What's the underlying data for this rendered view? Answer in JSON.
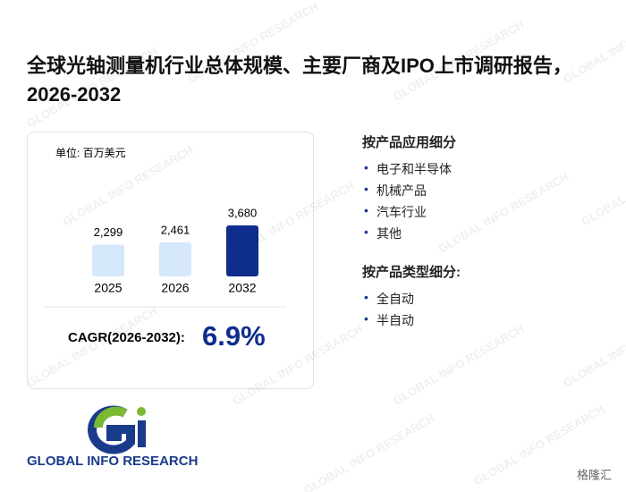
{
  "title": "全球光轴测量机行业总体规模、主要厂商及IPO上市调研报告，2026-2032",
  "chart_data": {
    "type": "bar",
    "unit_label": "单位: 百万美元",
    "categories": [
      "2025",
      "2026",
      "2032"
    ],
    "values": [
      2299,
      2461,
      3680
    ],
    "value_labels": [
      "2,299",
      "2,461",
      "3,680"
    ],
    "colors": [
      "#d6e8fb",
      "#d6e8fb",
      "#0e2d8c"
    ]
  },
  "cagr": {
    "label": "CAGR(2026-2032):",
    "value": "6.9%"
  },
  "segments": [
    {
      "heading": "按产品应用细分",
      "items": [
        "电子和半导体",
        "机械产品",
        "汽车行业",
        "其他"
      ]
    },
    {
      "heading": "按产品类型细分:",
      "items": [
        "全自动",
        "半自动"
      ]
    }
  ],
  "logo": {
    "text": "GLOBAL INFO RESEARCH"
  },
  "watermark": "GLOBAL INFO RESEARCH",
  "source_badge": "格隆汇"
}
